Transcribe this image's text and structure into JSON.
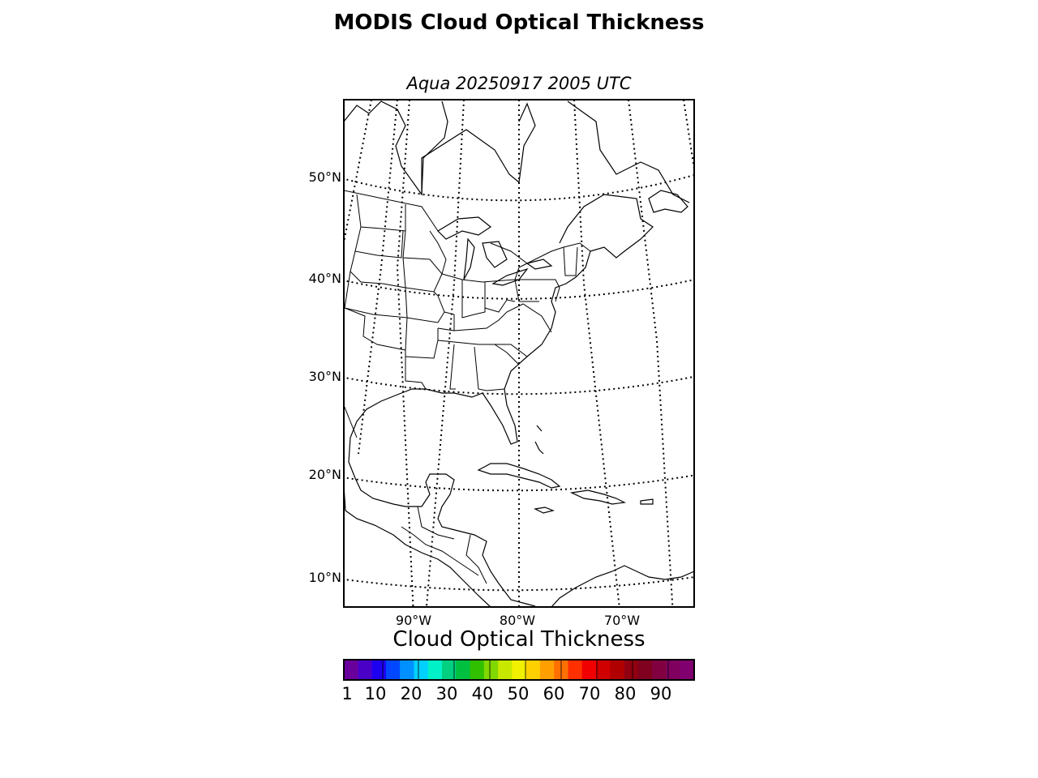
{
  "title": "MODIS Cloud Optical Thickness",
  "subtitle": "Aqua 20250917 2005 UTC",
  "map": {
    "lat_labels": [
      "50°N",
      "40°N",
      "30°N",
      "20°N",
      "10°N"
    ],
    "lon_labels": [
      "90°W",
      "80°W",
      "70°W"
    ]
  },
  "colorbar": {
    "label": "Cloud Optical Thickness",
    "ticks": [
      "1",
      "10",
      "20",
      "30",
      "40",
      "50",
      "60",
      "70",
      "80",
      "90"
    ],
    "colors": [
      "#6a009c",
      "#4b00c8",
      "#1e00f0",
      "#0048ff",
      "#0090ff",
      "#00d0ff",
      "#00f0c8",
      "#00d080",
      "#00c040",
      "#30c000",
      "#80d800",
      "#c8e800",
      "#f0f000",
      "#ffd000",
      "#ffa000",
      "#ff7000",
      "#ff3000",
      "#f00000",
      "#d00000",
      "#b00000",
      "#900010",
      "#800020",
      "#800040",
      "#800060",
      "#800070"
    ]
  }
}
